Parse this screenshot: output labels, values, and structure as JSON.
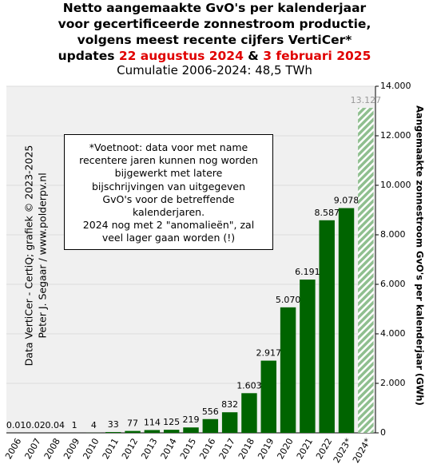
{
  "chart_data": {
    "type": "bar",
    "title_lines": [
      "Netto aangemaakte GvO's per kalenderjaar",
      "voor gecertificeerde zonnestroom productie,",
      "volgens meest recente cijfers VertiCer*"
    ],
    "update_line": [
      "updates",
      "22 augustus 2024",
      "&",
      "3 februari 2025"
    ],
    "subtitle": "Cumulatie 2006-2024: 48,5 TWh",
    "y_axis_label": "Aangemaakte zonnestroom GvO's per kalenderjaar (GWh)",
    "credits": [
      "Data VertiCer - CertiQ; grafiek © 2023-2025",
      "Peter J. Segaar / www.polderpv.nl"
    ],
    "footnote": [
      "*Voetnoot: data voor met name",
      "recentere jaren kunnen nog worden",
      "bijgewerkt met latere",
      "bijschrijvingen  van uitgegeven",
      "GvO's  voor de betreffende",
      "kalenderjaren.",
      "2024 nog met 2 \"anomalieën\",  zal",
      "veel lager gaan worden (!)"
    ],
    "categories": [
      "2006",
      "2007",
      "2008",
      "2009",
      "2010",
      "2011",
      "2012",
      "2013",
      "2014",
      "2015",
      "2016",
      "2017",
      "2018",
      "2019",
      "2020",
      "2021",
      "2022",
      "2023*",
      "2024*"
    ],
    "values": [
      0.01,
      0.02,
      0.04,
      1,
      4,
      33,
      77,
      114,
      125,
      219,
      556,
      832,
      1603,
      2917,
      5070,
      6191,
      8587,
      9078,
      13127
    ],
    "value_labels": [
      "0.01",
      "0.02",
      "0.04",
      "1",
      "4",
      "33",
      "77",
      "114",
      "125",
      "219",
      "556",
      "832",
      "1.603",
      "2.917",
      "5.070",
      "6.191",
      "8.587",
      "9.078",
      "13.127"
    ],
    "hatched": [
      false,
      false,
      false,
      false,
      false,
      false,
      false,
      false,
      false,
      false,
      false,
      false,
      false,
      false,
      false,
      false,
      false,
      false,
      true
    ],
    "color": "#006400",
    "hatch_color": "#8fbf8f",
    "ylim": [
      0,
      14000
    ],
    "yticks": [
      0,
      {
        "value": 2000,
        "label": "2.000"
      },
      {
        "value": 4000,
        "label": "4.000"
      },
      {
        "value": 6000,
        "label": "6.000"
      },
      {
        "value": 8000,
        "label": "8.000"
      },
      {
        "value": 10000,
        "label": "10.000"
      },
      {
        "value": 12000,
        "label": "12.000"
      },
      {
        "value": 14000,
        "label": "14.000"
      }
    ],
    "grid": true
  }
}
